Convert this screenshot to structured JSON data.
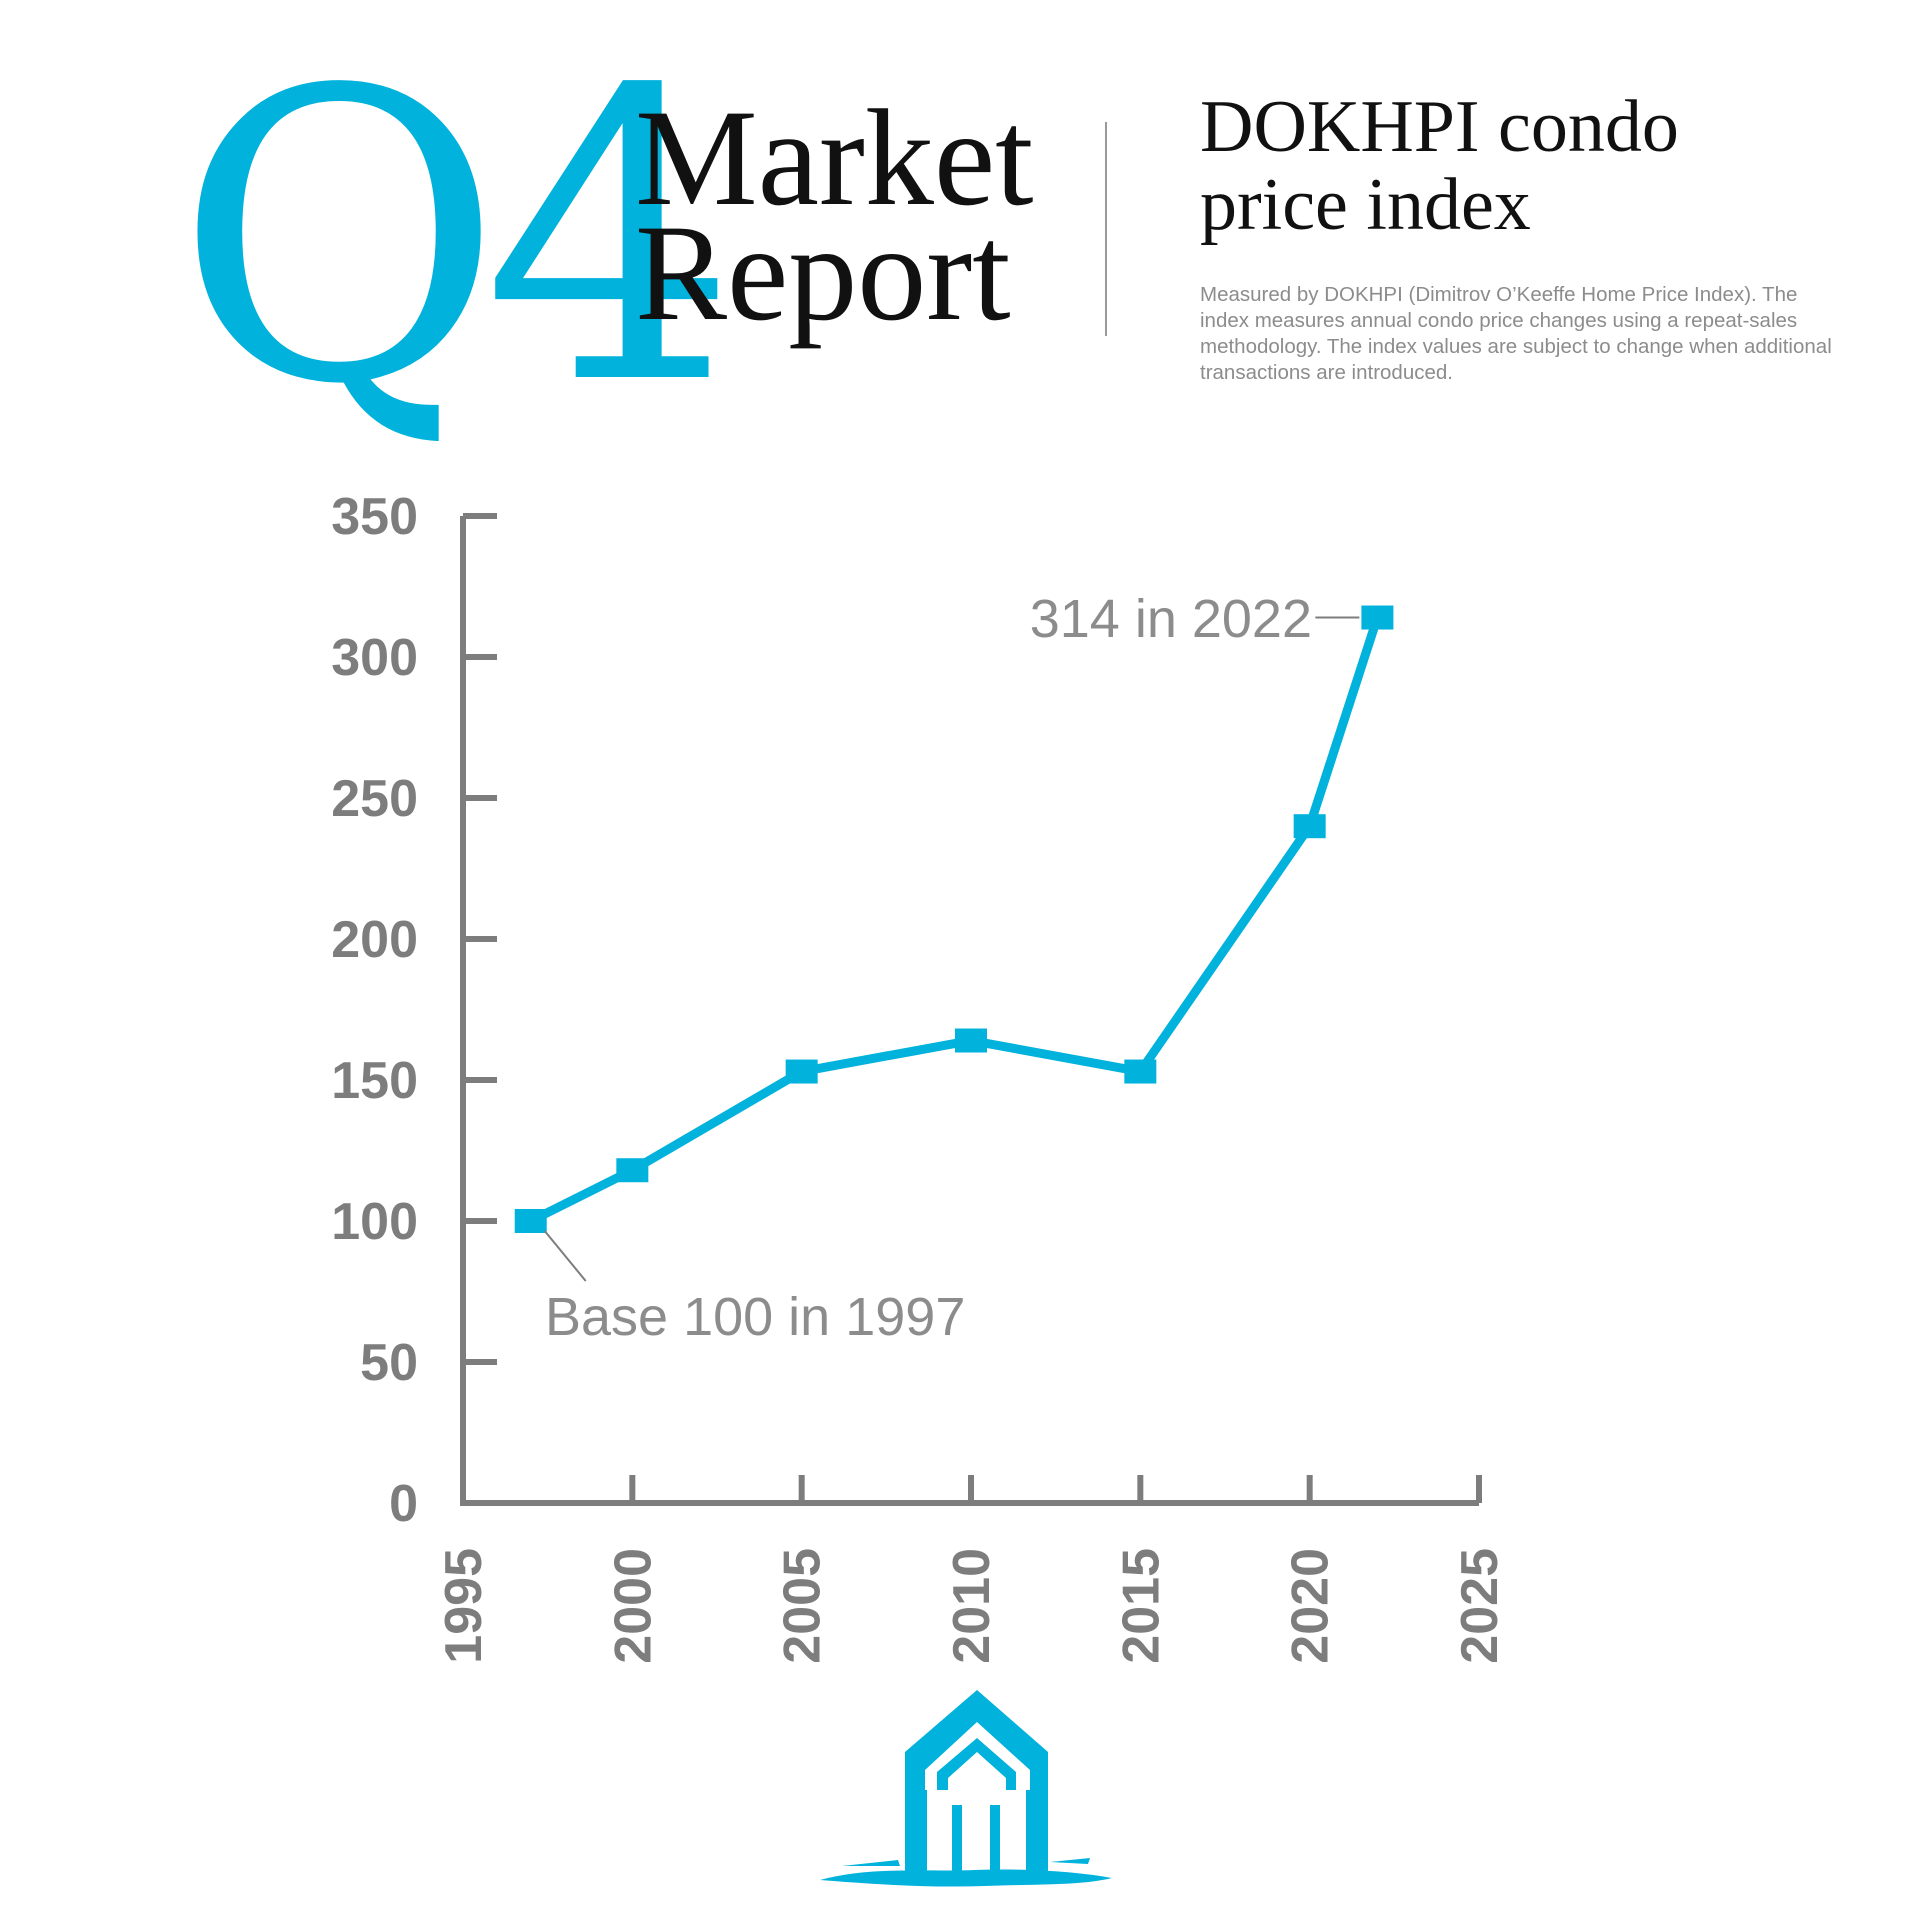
{
  "header": {
    "quarter": "Q4",
    "report_line1": "Market",
    "report_line2": "Report",
    "index_title_line1": "DOKHPI condo",
    "index_title_line2": "price index",
    "description": "Measured by DOKHPI (Dimitrov O’Keeffe Home Price Index). The index measures annual condo price changes using a repeat-sales methodology. The index values are subject to change when additional transactions are introduced."
  },
  "colors": {
    "accent": "#00b2dc",
    "axis": "#7d7d7d",
    "text_dark": "#111111",
    "text_muted": "#8c8c8c"
  },
  "chart_data": {
    "type": "line",
    "title": "",
    "xlabel": "",
    "ylabel": "",
    "xlim": [
      1995,
      2025
    ],
    "ylim": [
      0,
      350
    ],
    "x_ticks": [
      "1995",
      "2000",
      "2005",
      "2010",
      "2015",
      "2020",
      "2025"
    ],
    "y_ticks": [
      "0",
      "50",
      "100",
      "150",
      "200",
      "250",
      "300",
      "350"
    ],
    "grid": false,
    "legend": "none",
    "series": [
      {
        "x": [
          1997,
          2000,
          2005,
          2010,
          2015,
          2020,
          2022
        ],
        "values": [
          100,
          118,
          153,
          164,
          153,
          240,
          314
        ],
        "marker": "square"
      }
    ],
    "annotations": [
      {
        "text": "Base 100 in 1997",
        "x": 1997,
        "y": 100
      },
      {
        "text": "314 in 2022",
        "x": 2022,
        "y": 314
      }
    ]
  },
  "logo": {
    "icon": "house-brush-icon"
  }
}
